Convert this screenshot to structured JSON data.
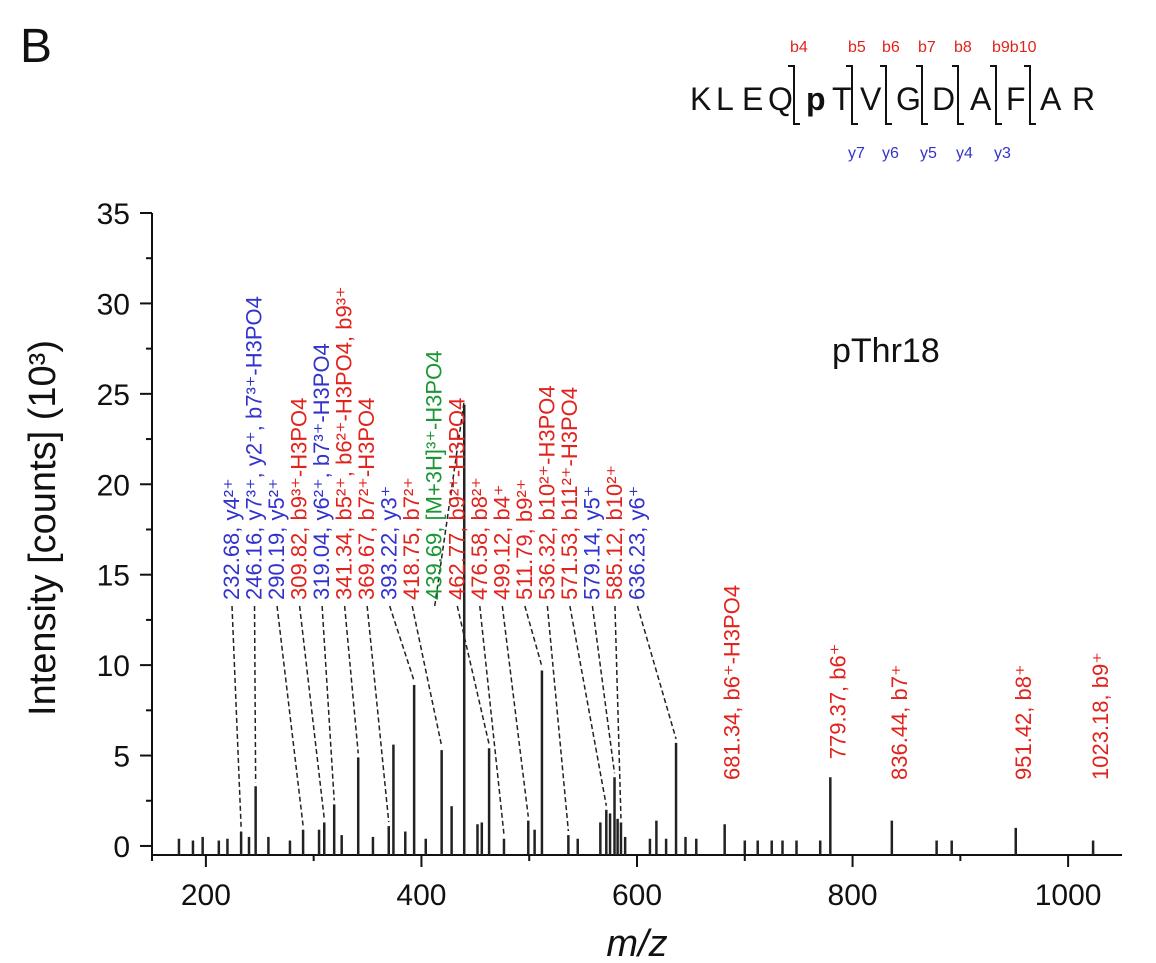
{
  "panel_label": "B",
  "chart_data": {
    "type": "bar",
    "title": "",
    "xlabel": "m/z",
    "ylabel": "Intensity [counts] (10³)",
    "xlim": [
      150,
      1050
    ],
    "ylim": [
      -0.5,
      35
    ],
    "xticks": [
      200,
      400,
      600,
      800,
      1000
    ],
    "yticks": [
      0,
      5,
      10,
      15,
      20,
      25,
      30,
      35
    ],
    "annotation_text": "pThr18",
    "sequence": {
      "residues": [
        "K",
        "L",
        "E",
        "Q",
        "p",
        "T",
        "V",
        "G",
        "D",
        "A",
        "F",
        "A",
        "R"
      ],
      "b_ions": [
        "b4",
        "b5",
        "b6",
        "b7",
        "b8",
        "b9b10"
      ],
      "y_ions": [
        "y7",
        "y6",
        "y5",
        "y4",
        "y3"
      ]
    },
    "peaks": [
      {
        "mz": 175,
        "intensity": 0.4
      },
      {
        "mz": 188,
        "intensity": 0.3
      },
      {
        "mz": 197,
        "intensity": 0.5
      },
      {
        "mz": 212,
        "intensity": 0.3
      },
      {
        "mz": 220,
        "intensity": 0.4
      },
      {
        "mz": 232.68,
        "intensity": 0.8,
        "label": "232.68, y4²⁺",
        "color": "#3333cc"
      },
      {
        "mz": 240,
        "intensity": 0.5
      },
      {
        "mz": 246.16,
        "intensity": 3.3,
        "label": "246.16, y7³⁺, y2⁺, b7³⁺-H3PO4",
        "color": "#3333cc"
      },
      {
        "mz": 258,
        "intensity": 0.5
      },
      {
        "mz": 278,
        "intensity": 0.3
      },
      {
        "mz": 290.19,
        "intensity": 0.9,
        "label": "290.19, y5²⁺",
        "color": "#3333cc"
      },
      {
        "mz": 305,
        "intensity": 0.9
      },
      {
        "mz": 309.82,
        "intensity": 1.3,
        "label": "309.82, b9³⁺-H3PO4",
        "color": "#e0231c"
      },
      {
        "mz": 319.04,
        "intensity": 2.3,
        "label": "319.04, y6²⁺, b7³⁺-H3PO4",
        "color": "#3333cc"
      },
      {
        "mz": 326,
        "intensity": 0.6
      },
      {
        "mz": 341.34,
        "intensity": 4.9,
        "label": "341.34, b5²⁺, b6²⁺-H3PO4, b9³⁺",
        "color": "#e0231c"
      },
      {
        "mz": 355,
        "intensity": 0.5
      },
      {
        "mz": 369.67,
        "intensity": 1.1,
        "label": "369.67, b7²⁺-H3PO4",
        "color": "#e0231c"
      },
      {
        "mz": 374,
        "intensity": 5.6
      },
      {
        "mz": 385,
        "intensity": 0.8
      },
      {
        "mz": 393.22,
        "intensity": 8.9,
        "label": "393.22, y3⁺",
        "color": "#3333cc"
      },
      {
        "mz": 404,
        "intensity": 0.4
      },
      {
        "mz": 418.75,
        "intensity": 5.3,
        "label": "418.75, b7²⁺",
        "color": "#e0231c"
      },
      {
        "mz": 428,
        "intensity": 2.2
      },
      {
        "mz": 439.69,
        "intensity": 24.4,
        "label": "439.69, [M+3H]³⁺-H3PO4",
        "color": "#1a9632"
      },
      {
        "mz": 452,
        "intensity": 1.2
      },
      {
        "mz": 456,
        "intensity": 1.3
      },
      {
        "mz": 462.77,
        "intensity": 5.4,
        "label": "462.77, b9²⁺-H3PO4",
        "color": "#e0231c"
      },
      {
        "mz": 476.58,
        "intensity": 0.4,
        "label": "476.58, b8²⁺",
        "color": "#e0231c"
      },
      {
        "mz": 499.12,
        "intensity": 1.4,
        "label": "499.12, b4⁺",
        "color": "#e0231c"
      },
      {
        "mz": 505,
        "intensity": 0.9
      },
      {
        "mz": 511.79,
        "intensity": 9.7,
        "label": "511.79, b9²⁺",
        "color": "#e0231c"
      },
      {
        "mz": 536.32,
        "intensity": 0.6,
        "label": "536.32, b10²⁺-H3PO4",
        "color": "#e0231c"
      },
      {
        "mz": 545,
        "intensity": 0.4
      },
      {
        "mz": 566,
        "intensity": 1.3
      },
      {
        "mz": 571.53,
        "intensity": 2.0,
        "label": "571.53, b11²⁺-H3PO4",
        "color": "#e0231c"
      },
      {
        "mz": 575,
        "intensity": 1.8
      },
      {
        "mz": 579.14,
        "intensity": 3.8,
        "label": "579.14, y5⁺",
        "color": "#3333cc"
      },
      {
        "mz": 582,
        "intensity": 1.5
      },
      {
        "mz": 585.12,
        "intensity": 1.3,
        "label": "585.12, b10²⁺",
        "color": "#e0231c"
      },
      {
        "mz": 589,
        "intensity": 0.5
      },
      {
        "mz": 612,
        "intensity": 0.4
      },
      {
        "mz": 618,
        "intensity": 1.4
      },
      {
        "mz": 627,
        "intensity": 0.4
      },
      {
        "mz": 636.23,
        "intensity": 5.7,
        "label": "636.23, y6⁺",
        "color": "#3333cc"
      },
      {
        "mz": 645,
        "intensity": 0.5
      },
      {
        "mz": 655,
        "intensity": 0.4
      },
      {
        "mz": 681.34,
        "intensity": 1.2,
        "label": "681.34, b6⁺-H3PO4",
        "color": "#e0231c"
      },
      {
        "mz": 700,
        "intensity": 0.3
      },
      {
        "mz": 712,
        "intensity": 0.3
      },
      {
        "mz": 725,
        "intensity": 0.3
      },
      {
        "mz": 735,
        "intensity": 0.3
      },
      {
        "mz": 748,
        "intensity": 0.3
      },
      {
        "mz": 770,
        "intensity": 0.3
      },
      {
        "mz": 779.37,
        "intensity": 3.8,
        "label": "779.37, b6⁺",
        "color": "#e0231c"
      },
      {
        "mz": 836.44,
        "intensity": 1.4,
        "label": "836.44, b7⁺",
        "color": "#e0231c"
      },
      {
        "mz": 878,
        "intensity": 0.3
      },
      {
        "mz": 892,
        "intensity": 0.3
      },
      {
        "mz": 951.42,
        "intensity": 1.0,
        "label": "951.42, b8⁺",
        "color": "#e0231c"
      },
      {
        "mz": 1023.18,
        "intensity": 0.3,
        "label": "1023.18, b9⁺",
        "color": "#e0231c"
      }
    ]
  }
}
